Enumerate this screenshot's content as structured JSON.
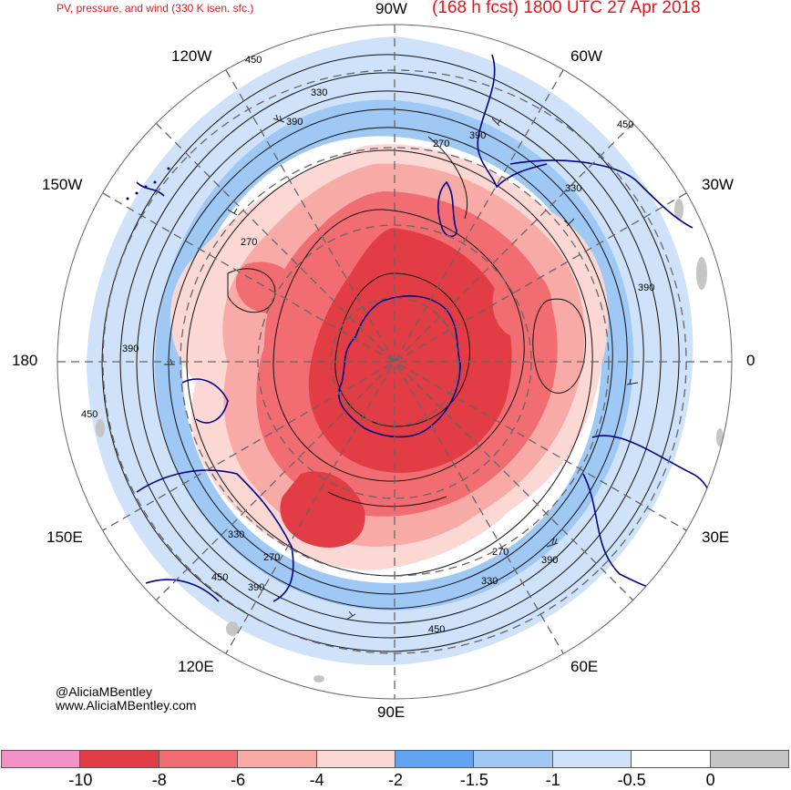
{
  "header": {
    "product": "PV, pressure, and wind (330 K isen. sfc.)",
    "valid": "(168 h fcst) 1800 UTC 27 Apr 2018"
  },
  "longitude_labels": {
    "n90w": "90W",
    "w120": "120W",
    "w60": "60W",
    "w150": "150W",
    "w30": "30W",
    "d180": "180",
    "d0": "0",
    "e150": "150E",
    "e30": "30E",
    "e120": "120E",
    "e60": "60E",
    "e90": "90E"
  },
  "contour_labels": [
    "450",
    "330",
    "390",
    "270",
    "390",
    "450",
    "330",
    "390",
    "270",
    "390",
    "450",
    "330",
    "270",
    "390",
    "450",
    "330",
    "270",
    "390",
    "450"
  ],
  "credits": {
    "handle": "@AliciaMBentley",
    "site": "www.AliciaMBentley.com"
  },
  "colorbar": {
    "ticks": [
      "-10",
      "-8",
      "-6",
      "-4",
      "-2",
      "-1.5",
      "-1",
      "-0.5",
      "0"
    ],
    "colors": [
      "#f293c6",
      "#e23c44",
      "#f16d72",
      "#f7aaa6",
      "#fcd8d5",
      "#62a4f0",
      "#9fc8f5",
      "#cfe2fa",
      "#ffffff",
      "#c5c5c5"
    ]
  },
  "style": {
    "map_red": "#e23c44",
    "coast_color": "#00008b",
    "title_color": "#e8141c"
  }
}
